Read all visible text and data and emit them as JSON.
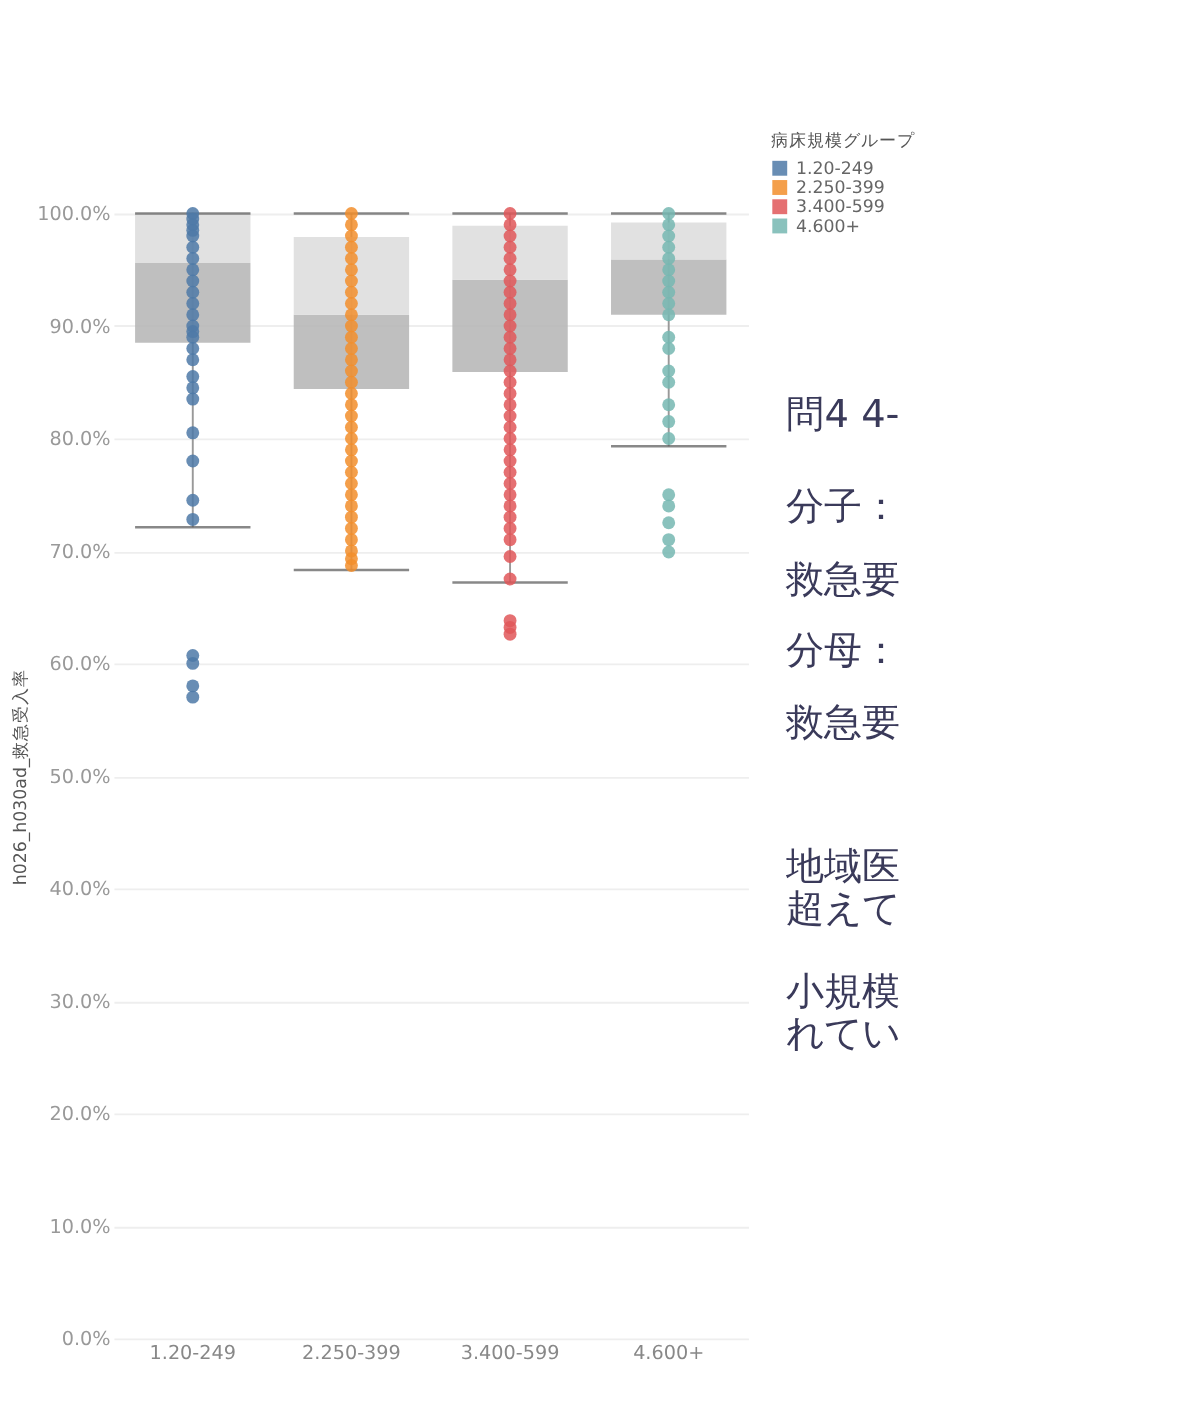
{
  "chart_data": {
    "type": "box",
    "ylabel": "h026_h030ad_救急受入率",
    "legend_title": "病床規模グループ",
    "categories": [
      "1.20-249",
      "2.250-399",
      "3.400-599",
      "4.600+"
    ],
    "boxes": [
      {
        "low": 72.1,
        "q1": 88.5,
        "median": 95.6,
        "q3": 100,
        "high": 100
      },
      {
        "low": 68.3,
        "q1": 84.4,
        "median": 91.0,
        "q3": 97.9,
        "high": 100
      },
      {
        "low": 67.2,
        "q1": 85.9,
        "median": 94.1,
        "q3": 98.9,
        "high": 100
      },
      {
        "low": 79.3,
        "q1": 91.0,
        "median": 95.9,
        "q3": 99.2,
        "high": 100
      }
    ],
    "series": [
      {
        "name": "1.20-249",
        "color": "#4e79a7",
        "type": "scatter",
        "x": [
          "1.20-249",
          "1.20-249",
          "1.20-249",
          "1.20-249",
          "1.20-249",
          "1.20-249",
          "1.20-249",
          "1.20-249",
          "1.20-249",
          "1.20-249",
          "1.20-249",
          "1.20-249",
          "1.20-249",
          "1.20-249",
          "1.20-249",
          "1.20-249",
          "1.20-249",
          "1.20-249",
          "1.20-249",
          "1.20-249",
          "1.20-249",
          "1.20-249",
          "1.20-249",
          "1.20-249",
          "1.20-249",
          "1.20-249",
          "1.20-249",
          "1.20-249"
        ],
        "values": [
          100,
          99.5,
          99,
          98.5,
          98,
          97,
          96,
          95,
          94,
          93,
          92,
          91,
          90,
          89.5,
          89,
          88,
          87,
          85.5,
          84.5,
          83.5,
          80.5,
          78,
          74.5,
          72.8,
          60.7,
          60,
          58,
          57
        ]
      },
      {
        "name": "2.250-399",
        "color": "#f28e2b",
        "type": "scatter",
        "x": [
          "2.250-399",
          "2.250-399",
          "2.250-399",
          "2.250-399",
          "2.250-399",
          "2.250-399",
          "2.250-399",
          "2.250-399",
          "2.250-399",
          "2.250-399",
          "2.250-399",
          "2.250-399",
          "2.250-399",
          "2.250-399",
          "2.250-399",
          "2.250-399",
          "2.250-399",
          "2.250-399",
          "2.250-399",
          "2.250-399",
          "2.250-399",
          "2.250-399",
          "2.250-399",
          "2.250-399",
          "2.250-399",
          "2.250-399",
          "2.250-399",
          "2.250-399",
          "2.250-399",
          "2.250-399",
          "2.250-399",
          "2.250-399",
          "2.250-399"
        ],
        "values": [
          100,
          99,
          98,
          97,
          96,
          95,
          94,
          93,
          92,
          91,
          90,
          89,
          88,
          87,
          86,
          85,
          84,
          83,
          82,
          81,
          80,
          79,
          78,
          77,
          76,
          75,
          74,
          73,
          72,
          71,
          70,
          69.3,
          68.7
        ]
      },
      {
        "name": "3.400-599",
        "color": "#e15759",
        "type": "scatter",
        "x": [
          "3.400-599",
          "3.400-599",
          "3.400-599",
          "3.400-599",
          "3.400-599",
          "3.400-599",
          "3.400-599",
          "3.400-599",
          "3.400-599",
          "3.400-599",
          "3.400-599",
          "3.400-599",
          "3.400-599",
          "3.400-599",
          "3.400-599",
          "3.400-599",
          "3.400-599",
          "3.400-599",
          "3.400-599",
          "3.400-599",
          "3.400-599",
          "3.400-599",
          "3.400-599",
          "3.400-599",
          "3.400-599",
          "3.400-599",
          "3.400-599",
          "3.400-599",
          "3.400-599",
          "3.400-599",
          "3.400-599",
          "3.400-599",
          "3.400-599",
          "3.400-599",
          "3.400-599"
        ],
        "values": [
          100,
          99,
          98,
          97,
          96,
          95,
          94,
          93,
          92,
          91,
          90,
          89,
          88,
          87,
          86,
          85,
          84,
          83,
          82,
          81,
          80,
          79,
          78,
          77,
          76,
          75,
          74,
          73,
          72,
          71,
          69.5,
          67.5,
          63.8,
          63.2,
          62.6
        ]
      },
      {
        "name": "4.600+",
        "color": "#76b7b2",
        "type": "scatter",
        "x": [
          "4.600+",
          "4.600+",
          "4.600+",
          "4.600+",
          "4.600+",
          "4.600+",
          "4.600+",
          "4.600+",
          "4.600+",
          "4.600+",
          "4.600+",
          "4.600+",
          "4.600+",
          "4.600+",
          "4.600+",
          "4.600+",
          "4.600+",
          "4.600+",
          "4.600+",
          "4.600+",
          "4.600+",
          "4.600+"
        ],
        "values": [
          100,
          99,
          98,
          97,
          96,
          95,
          94,
          93,
          92,
          91,
          89,
          88,
          86,
          85,
          83,
          81.5,
          80,
          75,
          74,
          72.5,
          71,
          69.9
        ]
      }
    ],
    "ylim": [
      0,
      100
    ],
    "yticks": [
      {
        "value": 0,
        "label": "0.0%"
      },
      {
        "value": 10,
        "label": "10.0%"
      },
      {
        "value": 20,
        "label": "20.0%"
      },
      {
        "value": 30,
        "label": "30.0%"
      },
      {
        "value": 40,
        "label": "40.0%"
      },
      {
        "value": 50,
        "label": "50.0%"
      },
      {
        "value": 60,
        "label": "60.0%"
      },
      {
        "value": 70,
        "label": "70.0%"
      },
      {
        "value": 80,
        "label": "80.0%"
      },
      {
        "value": 90,
        "label": "90.0%"
      },
      {
        "value": 100,
        "label": "100.0%"
      }
    ],
    "grid": "y",
    "legend": "top right",
    "annotations": [
      "問4 4-",
      "分子：",
      "救急要",
      "分母：",
      "救急要",
      "地域医",
      "超えて",
      "小規模",
      "れてい"
    ]
  }
}
